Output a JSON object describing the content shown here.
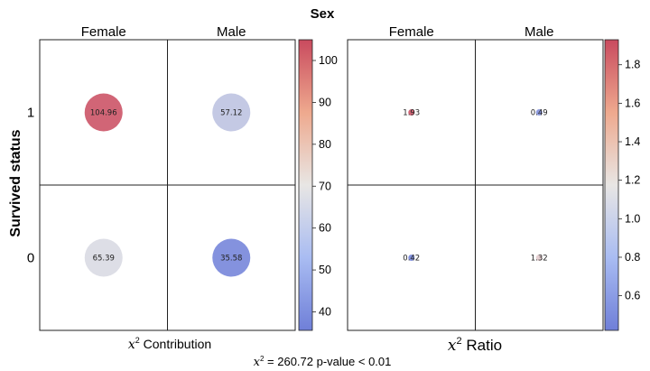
{
  "title": "Sex",
  "ylabel": "Survived status",
  "footer": {
    "chi2_symbol": "x",
    "chi2_power": "2",
    "chi2_text": "= 260.72",
    "pvalue_text": "p-value < 0.01"
  },
  "chart_data": [
    {
      "type": "heatmap",
      "title": "Contribution",
      "title_symbol": "x",
      "title_power": "2",
      "xlabel": "Contribution",
      "ylabel": "Survived status",
      "columns": [
        "Female",
        "Male"
      ],
      "rows": [
        "1",
        "0"
      ],
      "cells": [
        {
          "row": "1",
          "col": "Female",
          "value": 104.96,
          "label": "104.96"
        },
        {
          "row": "1",
          "col": "Male",
          "value": 57.12,
          "label": "57.12"
        },
        {
          "row": "0",
          "col": "Female",
          "value": 65.39,
          "label": "65.39"
        },
        {
          "row": "0",
          "col": "Male",
          "value": 35.58,
          "label": "35.58"
        }
      ],
      "colorbar": {
        "min": 35.58,
        "max": 104.96,
        "ticks": [
          40,
          50,
          60,
          70,
          80,
          90,
          100
        ]
      },
      "colormap": {
        "low": "#6f7fd8",
        "mid": "#e8e6e4",
        "high": "#c94a5e"
      },
      "marker": "circle"
    },
    {
      "type": "heatmap",
      "title": "Ratio",
      "title_symbol": "x",
      "title_power": "2",
      "xlabel": "Ratio",
      "columns": [
        "Female",
        "Male"
      ],
      "rows": [
        "1",
        "0"
      ],
      "cells": [
        {
          "row": "1",
          "col": "Female",
          "value": 1.93,
          "label": "1.93"
        },
        {
          "row": "1",
          "col": "Male",
          "value": 0.49,
          "label": "0.49"
        },
        {
          "row": "0",
          "col": "Female",
          "value": 0.42,
          "label": "0.42"
        },
        {
          "row": "0",
          "col": "Male",
          "value": 1.32,
          "label": "1.32"
        }
      ],
      "colorbar": {
        "min": 0.42,
        "max": 1.93,
        "ticks": [
          0.6,
          0.8,
          1.0,
          1.2,
          1.4,
          1.6,
          1.8
        ]
      },
      "colormap": {
        "low": "#6f7fd8",
        "mid": "#e8e6e4",
        "high": "#c94a5e"
      },
      "marker": "dot"
    }
  ]
}
